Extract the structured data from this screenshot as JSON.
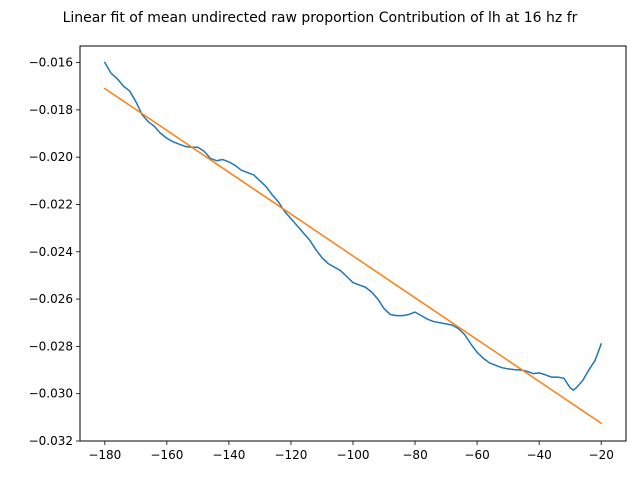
{
  "chart_data": {
    "type": "line",
    "title": "Linear fit of mean undirected raw proportion Contribution of lh at 16 hz fr",
    "xlabel": "",
    "ylabel": "",
    "xlim": [
      -188,
      -12
    ],
    "ylim": [
      -0.032,
      -0.0153
    ],
    "x_ticks": [
      -180,
      -160,
      -140,
      -120,
      -100,
      -80,
      -60,
      -40,
      -20
    ],
    "x_tick_labels": [
      "−180",
      "−160",
      "−140",
      "−120",
      "−100",
      "−80",
      "−60",
      "−40",
      "−20"
    ],
    "y_ticks": [
      -0.032,
      -0.03,
      -0.028,
      -0.026,
      -0.024,
      -0.022,
      -0.02,
      -0.018,
      -0.016
    ],
    "y_tick_labels": [
      "−0.032",
      "−0.030",
      "−0.028",
      "−0.026",
      "−0.024",
      "−0.022",
      "−0.020",
      "−0.018",
      "−0.016"
    ],
    "grid": false,
    "legend": "none",
    "series": [
      {
        "color": "#1f77b4",
        "x": [
          -180,
          -178,
          -176,
          -174,
          -172,
          -170,
          -168,
          -166,
          -164,
          -162,
          -160,
          -158,
          -156,
          -154,
          -152,
          -150,
          -148,
          -146,
          -144,
          -142,
          -140,
          -138,
          -136,
          -134,
          -132,
          -130,
          -128,
          -126,
          -124,
          -122,
          -120,
          -118,
          -116,
          -114,
          -112,
          -110,
          -108,
          -106,
          -104,
          -102,
          -100,
          -98,
          -96,
          -94,
          -92,
          -90,
          -88,
          -86,
          -84,
          -82,
          -80,
          -78,
          -76,
          -74,
          -72,
          -70,
          -68,
          -66,
          -64,
          -62,
          -60,
          -58,
          -56,
          -54,
          -52,
          -50,
          -48,
          -46,
          -44,
          -42,
          -40,
          -38,
          -36,
          -34,
          -32,
          -30,
          -29,
          -28,
          -26,
          -24,
          -22,
          -20
        ],
        "y": [
          -0.016,
          -0.01645,
          -0.01668,
          -0.017,
          -0.0172,
          -0.01765,
          -0.0182,
          -0.0185,
          -0.0187,
          -0.019,
          -0.0192,
          -0.01935,
          -0.01945,
          -0.01955,
          -0.01958,
          -0.01958,
          -0.01975,
          -0.02005,
          -0.02015,
          -0.0201,
          -0.0202,
          -0.02035,
          -0.02055,
          -0.02065,
          -0.02075,
          -0.021,
          -0.02125,
          -0.0216,
          -0.0219,
          -0.0223,
          -0.0226,
          -0.0229,
          -0.0232,
          -0.0235,
          -0.0239,
          -0.02425,
          -0.0245,
          -0.02465,
          -0.0248,
          -0.02505,
          -0.0253,
          -0.0254,
          -0.0255,
          -0.0257,
          -0.026,
          -0.0264,
          -0.02665,
          -0.0267,
          -0.0267,
          -0.02665,
          -0.02655,
          -0.0267,
          -0.02685,
          -0.02695,
          -0.027,
          -0.02705,
          -0.0271,
          -0.02725,
          -0.0275,
          -0.0279,
          -0.02825,
          -0.0285,
          -0.0287,
          -0.0288,
          -0.0289,
          -0.02895,
          -0.02898,
          -0.029,
          -0.02905,
          -0.02915,
          -0.02912,
          -0.0292,
          -0.0293,
          -0.0293,
          -0.02935,
          -0.02975,
          -0.02985,
          -0.02975,
          -0.02945,
          -0.029,
          -0.0286,
          -0.0279
        ]
      },
      {
        "color": "#ff7f0e",
        "x": [
          -180,
          -20
        ],
        "y": [
          -0.0171,
          -0.03125
        ]
      }
    ]
  }
}
